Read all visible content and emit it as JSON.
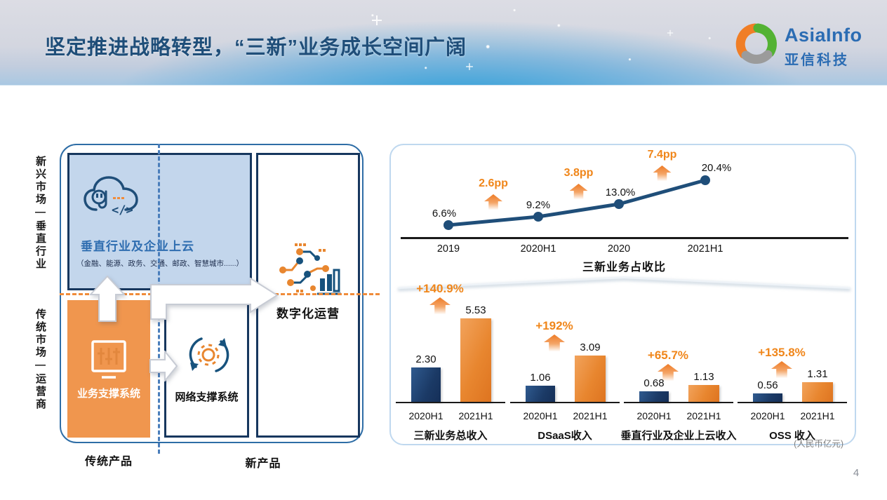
{
  "header": {
    "title": "坚定推进战略转型，“三新”业务成长空间广阔",
    "logo": {
      "name": "AsiaInfo",
      "name_cn": "亚信科技"
    }
  },
  "diagram": {
    "side_labels": {
      "top": "新兴市场—垂直行业",
      "bottom": "传统市场—运营商"
    },
    "boxes": {
      "cloud": {
        "title": "垂直行业及企业上云",
        "subtitle": "（金融、能源、政务、交通、邮政、智慧城市......）"
      },
      "bss": {
        "label": "业务支撑系统"
      },
      "oss": {
        "label": "网络支撑系统"
      },
      "digital": {
        "label": "数字化运营"
      }
    },
    "bottom_labels": {
      "left": "传统产品",
      "right": "新产品"
    }
  },
  "chart_data": [
    {
      "type": "line",
      "title": "三新业务占收比",
      "categories": [
        "2019",
        "2020H1",
        "2020",
        "2021H1"
      ],
      "values": [
        6.6,
        9.2,
        13.0,
        20.4
      ],
      "value_labels": [
        "6.6%",
        "9.2%",
        "13.0%",
        "20.4%"
      ],
      "delta_labels": [
        "2.6pp",
        "3.8pp",
        "7.4pp"
      ],
      "ylabel": "三新业务占收比 (%)",
      "line_color": "#1F4E79",
      "legend": "none",
      "grid": "off"
    },
    {
      "type": "bar",
      "categories": [
        "2020H1",
        "2021H1"
      ],
      "unit": "人民币亿元",
      "groups": [
        {
          "title": "三新业务总收入",
          "values": [
            2.3,
            5.53
          ],
          "value_labels": [
            "2.30",
            "5.53"
          ],
          "growth": "+140.9%"
        },
        {
          "title": "DSaaS收入",
          "values": [
            1.06,
            3.09
          ],
          "value_labels": [
            "1.06",
            "3.09"
          ],
          "growth": "+192%"
        },
        {
          "title": "垂直行业及企业上云收入",
          "values": [
            0.68,
            1.13
          ],
          "value_labels": [
            "0.68",
            "1.13"
          ],
          "growth": "+65.7%"
        },
        {
          "title": "OSS 收入",
          "values": [
            0.56,
            1.31
          ],
          "value_labels": [
            "0.56",
            "1.31"
          ],
          "growth": "+135.8%"
        }
      ],
      "series_colors": {
        "2020H1": "#1B3A66",
        "2021H1": "#ED7D31"
      }
    }
  ],
  "footer": {
    "unit_note": "(人民币亿元)",
    "page": "4"
  },
  "colors": {
    "navy": "#1F4E79",
    "accent_orange": "#ED7D31",
    "growth_orange": "#F0861A",
    "light_blue_fill": "#C3D6EC",
    "orange_fill": "#F0964E",
    "panel_border": "#BFD8EF",
    "frame_border": "#2E6DA6",
    "logo_blue": "#2B6CB3"
  }
}
